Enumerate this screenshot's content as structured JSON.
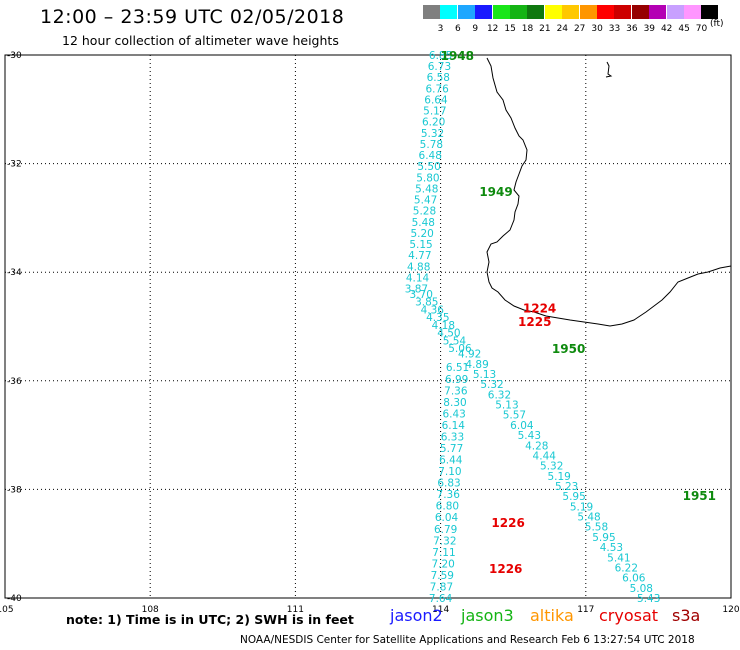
{
  "header": {
    "title": "12:00 – 23:59 UTC 02/05/2018",
    "subtitle": "12 hour collection of altimeter wave heights"
  },
  "legend": {
    "unit": "(ft)",
    "bins": [
      {
        "label": "3",
        "color": "#7f7f7f"
      },
      {
        "label": "6",
        "color": "#00ffff"
      },
      {
        "label": "9",
        "color": "#1ea7ff"
      },
      {
        "label": "12",
        "color": "#1a1aff"
      },
      {
        "label": "15",
        "color": "#19e619"
      },
      {
        "label": "18",
        "color": "#14b414"
      },
      {
        "label": "21",
        "color": "#0f780f"
      },
      {
        "label": "24",
        "color": "#ffff00"
      },
      {
        "label": "27",
        "color": "#ffc800"
      },
      {
        "label": "30",
        "color": "#ff9600"
      },
      {
        "label": "33",
        "color": "#ff0000"
      },
      {
        "label": "36",
        "color": "#cd0000"
      },
      {
        "label": "39",
        "color": "#960000"
      },
      {
        "label": "42",
        "color": "#b400b4"
      },
      {
        "label": "45",
        "color": "#c8a0ff"
      },
      {
        "label": "70",
        "color": "#ff96ff"
      },
      {
        "label": "",
        "color": "#000000"
      }
    ]
  },
  "map": {
    "lon_ticks": [
      "105",
      "108",
      "111",
      "114",
      "117",
      "120"
    ],
    "lat_ticks": [
      "-30",
      "-32",
      "-34",
      "-36",
      "-38",
      "-40"
    ],
    "extent": {
      "lon": [
        105,
        120
      ],
      "lat": [
        -30,
        -40
      ]
    }
  },
  "tracks": {
    "color": "#19c8d2",
    "track_1948": {
      "start": [
        114.0,
        -30.0
      ],
      "end": [
        113.5,
        -34.3
      ],
      "values": [
        "6.85",
        "6.73",
        "6.58",
        "6.76",
        "6.64",
        "5.17",
        "6.20",
        "5.32",
        "5.78",
        "6.48",
        "5.50",
        "5.80",
        "5.48",
        "5.47",
        "5.28",
        "5.48",
        "5.20",
        "5.15",
        "4.77",
        "4.88",
        "4.14",
        "3.87"
      ]
    },
    "track_1224": {
      "start": [
        113.6,
        -34.4
      ],
      "end": [
        114.4,
        -35.4
      ],
      "values": [
        "3.70",
        "3.85",
        "4.36",
        "4.35",
        "4.18",
        "4.50",
        "5.54",
        "5.06"
      ]
    },
    "track_1950": {
      "start": [
        114.6,
        -35.5
      ],
      "end": [
        118.3,
        -40.0
      ],
      "values": [
        "4.92",
        "4.89",
        "5.13",
        "5.32",
        "6.32",
        "5.13",
        "5.57",
        "6.04",
        "5.43",
        "4.28",
        "4.44",
        "5.32",
        "5.19",
        "5.23",
        "5.95",
        "5.19",
        "5.48",
        "5.58",
        "5.95",
        "4.53",
        "5.41",
        "6.22",
        "6.06",
        "5.08",
        "5.43"
      ]
    },
    "track_1226": {
      "start": [
        114.35,
        -35.75
      ],
      "end": [
        114.0,
        -40.0
      ],
      "values": [
        "6.51",
        "6.99",
        "7.36",
        "8.30",
        "6.43",
        "6.14",
        "6.33",
        "5.77",
        "6.44",
        "7.10",
        "6.83",
        "7.36",
        "6.80",
        "6.04",
        "6.79",
        "7.32",
        "7.11",
        "7.20",
        "7.59",
        "7.87",
        "7.64"
      ]
    }
  },
  "time_labels": [
    {
      "text": "1948",
      "color": "#0e8a0e",
      "lon": 114.0,
      "lat": -30.0
    },
    {
      "text": "1949",
      "color": "#0e8a0e",
      "lon": 114.8,
      "lat": -32.5
    },
    {
      "text": "1224",
      "color": "#e60000",
      "lon": 115.7,
      "lat": -34.65
    },
    {
      "text": "1225",
      "color": "#e60000",
      "lon": 115.6,
      "lat": -34.9
    },
    {
      "text": "1950",
      "color": "#0e8a0e",
      "lon": 116.3,
      "lat": -35.4
    },
    {
      "text": "1951",
      "color": "#0e8a0e",
      "lon": 119.0,
      "lat": -38.1
    },
    {
      "text": "1226",
      "color": "#e60000",
      "lon": 115.05,
      "lat": -38.6
    },
    {
      "text": "1226",
      "color": "#e60000",
      "lon": 115.0,
      "lat": -39.45
    }
  ],
  "note": "note:  1) Time is in UTC;  2) SWH is in feet",
  "satellites": [
    {
      "name": "jason2",
      "color": "#1a1aff"
    },
    {
      "name": "jason3",
      "color": "#14b414"
    },
    {
      "name": "altika",
      "color": "#ff9600"
    },
    {
      "name": "cryosat",
      "color": "#e60000"
    },
    {
      "name": "s3a",
      "color": "#a00000"
    }
  ],
  "footer": "NOAA/NESDIS Center for Satellite Applications and Research    Feb  6 13:27:54 UTC 2018"
}
